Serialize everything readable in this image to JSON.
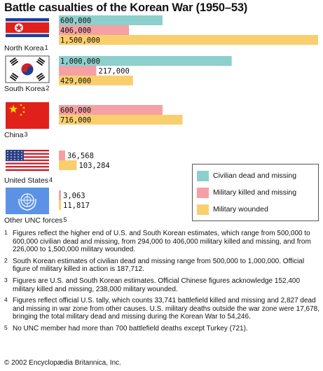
{
  "title": "Battle casualties of the Korean War (1950–53)",
  "chart_data": {
    "type": "bar",
    "orientation": "horizontal",
    "title": "Battle casualties of the Korean War (1950–53)",
    "legend_position": "right",
    "series": [
      {
        "name": "Civilian dead and missing",
        "color": "#8ccfcc"
      },
      {
        "name": "Military killed and missing",
        "color": "#f5a0a4"
      },
      {
        "name": "Military wounded",
        "color": "#f9cf6e"
      }
    ],
    "categories": [
      {
        "name": "North Korea",
        "footnote": "1",
        "flag": "north-korea",
        "bars": [
          {
            "series": 0,
            "value": 600000,
            "label": "600,000"
          },
          {
            "series": 1,
            "value": 406000,
            "label": "406,000"
          },
          {
            "series": 2,
            "value": 1500000,
            "label": "1,500,000"
          }
        ]
      },
      {
        "name": "South Korea",
        "footnote": "2",
        "flag": "south-korea",
        "bars": [
          {
            "series": 0,
            "value": 1000000,
            "label": "1,000,000"
          },
          {
            "series": 1,
            "value": 217000,
            "label": "217,000"
          },
          {
            "series": 2,
            "value": 429000,
            "label": "429,000"
          }
        ]
      },
      {
        "name": "China",
        "footnote": "3",
        "flag": "china",
        "bars": [
          {
            "series": 1,
            "value": 600000,
            "label": "600,000"
          },
          {
            "series": 2,
            "value": 716000,
            "label": "716,000"
          }
        ]
      },
      {
        "name": "United States",
        "footnote": "4",
        "flag": "united-states",
        "bars": [
          {
            "series": 1,
            "value": 36568,
            "label": "36,568"
          },
          {
            "series": 2,
            "value": 103284,
            "label": "103,284"
          }
        ]
      },
      {
        "name": "Other UNC forces",
        "footnote": "5",
        "flag": "united-nations",
        "bars": [
          {
            "series": 1,
            "value": 3063,
            "label": "3,063"
          },
          {
            "series": 2,
            "value": 11817,
            "label": "11,817"
          }
        ]
      }
    ]
  },
  "footnotes": [
    {
      "num": "1",
      "text": "Figures reflect the higher end of U.S. and South Korean estimates, which range from 500,000 to 600,000 civilian dead and missing, from 294,000 to 406,000 military killed and missing, and from 226,000 to 1,500,000 military wounded."
    },
    {
      "num": "2",
      "text": "South Korean estimates of civilian dead and missing range from 500,000 to 1,000,000. Official figure of military killed in action is 187,712."
    },
    {
      "num": "3",
      "text": "Figures are U.S. and South Korean estimates. Official Chinese figures acknowledge 152,400 military killed and missing, 238,000 military wounded."
    },
    {
      "num": "4",
      "text": "Figures reflect official U.S. tally, which counts 33,741 battlefield killed and missing and 2,827 dead and missing in war zone from other causes. U.S. military deaths outside the war zone were 17,678, bringing the total military dead and missing during the Korean War to 54,246."
    },
    {
      "num": "5",
      "text": "No UNC member had more than 700 battlefield deaths except Turkey (721)."
    }
  ],
  "copyright": "© 2002 Encyclopædia Britannica, Inc."
}
